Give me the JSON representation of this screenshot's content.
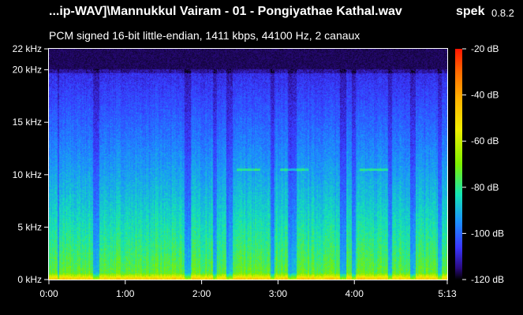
{
  "window": {
    "title": "...ip-WAV]\\Mannukkul Vairam - 01 - Pongiyathae Kathal.wav",
    "app_name": "spek",
    "app_version": "0.8.2",
    "description": "PCM signed 16-bit little-endian, 1411 kbps, 44100 Hz, 2 canaux"
  },
  "chart_data": {
    "type": "heatmap",
    "x_axis": {
      "ticks": [
        "0:00",
        "1:00",
        "2:00",
        "3:00",
        "4:00",
        "5:13"
      ],
      "tick_seconds": [
        0,
        60,
        120,
        180,
        240,
        313
      ],
      "range_seconds": [
        0,
        313
      ]
    },
    "y_axis": {
      "ticks": [
        "0 kHz",
        "5 kHz",
        "10 kHz",
        "15 kHz",
        "20 kHz",
        "22 kHz"
      ],
      "tick_khz": [
        0,
        5,
        10,
        15,
        20,
        22
      ],
      "range_khz": [
        0,
        22
      ]
    },
    "color_scale": {
      "ticks": [
        "-20 dB",
        "-40 dB",
        "-60 dB",
        "-80 dB",
        "-100 dB",
        "-120 dB"
      ],
      "tick_db": [
        -20,
        -40,
        -60,
        -80,
        -100,
        -120
      ],
      "range_db": [
        -120,
        -20
      ],
      "colors_top_to_bottom": [
        "#ff1500",
        "#ff6a00",
        "#ffb400",
        "#f0ee00",
        "#7cf000",
        "#13e6b4",
        "#1b90ff",
        "#3a36ff",
        "#2a0a80",
        "#000000"
      ]
    },
    "content_cutoff_khz": 20,
    "tone_band_khz": 10.5
  }
}
